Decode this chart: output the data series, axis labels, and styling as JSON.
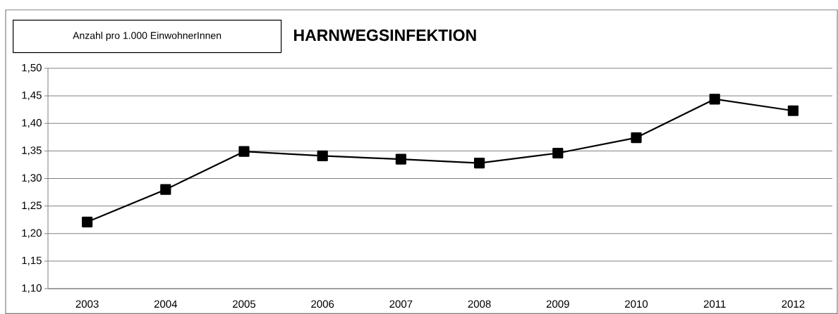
{
  "chart_data": {
    "type": "line",
    "title": "HARNWEGSINFEKTION",
    "ylabel": "Anzahl pro 1.000 EinwohnerInnen",
    "categories": [
      "2003",
      "2004",
      "2005",
      "2006",
      "2007",
      "2008",
      "2009",
      "2010",
      "2011",
      "2012"
    ],
    "series": [
      {
        "color": "#000000",
        "values": [
          1.221,
          1.28,
          1.349,
          1.341,
          1.335,
          1.328,
          1.346,
          1.374,
          1.444,
          1.423
        ]
      }
    ],
    "ylim": [
      1.1,
      1.5
    ],
    "yticks": [
      {
        "value": 1.1,
        "label": "1,10"
      },
      {
        "value": 1.15,
        "label": "1,15"
      },
      {
        "value": 1.2,
        "label": "1,20"
      },
      {
        "value": 1.25,
        "label": "1,25"
      },
      {
        "value": 1.3,
        "label": "1,30"
      },
      {
        "value": 1.35,
        "label": "1,35"
      },
      {
        "value": 1.4,
        "label": "1,40"
      },
      {
        "value": 1.45,
        "label": "1,45"
      },
      {
        "value": 1.5,
        "label": "1,50"
      }
    ],
    "grid": "y",
    "marker": "square",
    "line_style": "solid"
  }
}
